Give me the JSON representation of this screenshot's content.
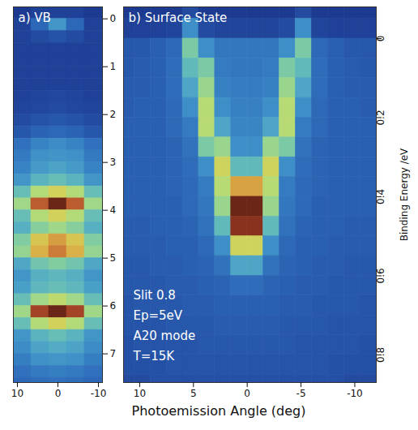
{
  "chart_data": {
    "type": "heatmap",
    "xlabel": "Photoemission Angle (deg)",
    "panels": [
      {
        "title": "a) VB",
        "xlim": [
          11,
          -11
        ],
        "ylim": [
          7.6,
          -0.25
        ],
        "xticks": [
          10,
          0,
          -10
        ],
        "yticks": [
          0,
          1,
          2,
          3,
          4,
          5,
          6,
          7
        ],
        "x_bins": [
          11,
          6.6,
          2.2,
          -2.2,
          -6.6,
          -11
        ],
        "y_bins": [
          -0.25,
          0,
          0.25,
          0.5,
          0.75,
          1,
          1.25,
          1.5,
          1.75,
          2,
          2.25,
          2.5,
          2.75,
          3,
          3.25,
          3.5,
          3.75,
          4,
          4.25,
          4.5,
          4.75,
          5,
          5.25,
          5.5,
          5.75,
          6,
          6.25,
          6.5,
          6.75,
          7,
          7.25,
          7.5,
          7.75
        ],
        "values": [
          [
            0.8,
            1,
            1,
            1,
            0.8
          ],
          [
            1,
            2,
            3,
            2,
            1
          ],
          [
            1,
            1.3,
            1.5,
            1.3,
            1
          ],
          [
            1,
            1,
            1,
            1,
            1
          ],
          [
            1,
            1,
            1,
            1,
            1
          ],
          [
            1,
            1,
            1,
            1,
            1
          ],
          [
            1,
            1,
            1,
            1,
            1
          ],
          [
            1,
            1.1,
            1.2,
            1.1,
            1
          ],
          [
            1.1,
            1.2,
            1.3,
            1.2,
            1.1
          ],
          [
            1.3,
            1.5,
            1.6,
            1.5,
            1.3
          ],
          [
            1.6,
            1.9,
            2,
            1.9,
            1.6
          ],
          [
            2.2,
            2.6,
            2.8,
            2.6,
            2.2
          ],
          [
            2.4,
            2.9,
            3,
            2.9,
            2.4
          ],
          [
            2.6,
            3.1,
            3.3,
            3.1,
            2.6
          ],
          [
            3,
            3.7,
            4,
            3.7,
            3
          ],
          [
            4,
            5.3,
            6,
            5.3,
            4
          ],
          [
            5,
            8,
            9.5,
            8,
            5
          ],
          [
            4,
            5.3,
            6,
            5.3,
            4
          ],
          [
            3.6,
            4.6,
            5,
            4.6,
            3.6
          ],
          [
            4.5,
            6.3,
            7,
            6.3,
            4.5
          ],
          [
            4.8,
            6.7,
            7.5,
            6.7,
            4.8
          ],
          [
            3.4,
            4.2,
            4.5,
            4.2,
            3.4
          ],
          [
            3,
            3.6,
            3.8,
            3.6,
            3
          ],
          [
            3.2,
            3.8,
            4,
            3.8,
            3.2
          ],
          [
            4,
            5,
            5.5,
            5,
            4
          ],
          [
            5,
            8.5,
            9.5,
            8.5,
            5
          ],
          [
            4,
            5.3,
            6,
            5.3,
            4
          ],
          [
            3,
            3.7,
            4,
            3.7,
            3
          ],
          [
            2.8,
            3.3,
            3.5,
            3.3,
            2.8
          ],
          [
            2.5,
            2.9,
            3,
            2.9,
            2.5
          ],
          [
            2.2,
            2.4,
            2.5,
            2.4,
            2.2
          ],
          [
            2,
            2.1,
            2.2,
            2.1,
            2
          ]
        ]
      },
      {
        "title": "b) Surface State",
        "ylabel": "Binding Energy /eV",
        "annotations": [
          "Slit 0.8",
          "Ep=5eV",
          "A20 mode",
          "T=15K"
        ],
        "xlim": [
          11.5,
          -12
        ],
        "ylim": [
          0.87,
          -0.08
        ],
        "xticks": [
          10,
          5,
          0,
          -5,
          -10
        ],
        "yticks": [
          0,
          0.2,
          0.4,
          0.6,
          0.8
        ],
        "x_bins": [
          12,
          10.5,
          9,
          7.5,
          6,
          4.5,
          3,
          1.5,
          0,
          -1.5,
          -3,
          -4.5,
          -6,
          -7.5,
          -9,
          -10.5,
          -12
        ],
        "y_bins": [
          -0.1,
          -0.05,
          0,
          0.05,
          0.1,
          0.15,
          0.2,
          0.25,
          0.3,
          0.35,
          0.4,
          0.45,
          0.5,
          0.55,
          0.6,
          0.65,
          0.7,
          0.75,
          0.8,
          0.85,
          0.9
        ],
        "values": [
          [
            1,
            1,
            1,
            1,
            1.5,
            1,
            1,
            1,
            1,
            1,
            1,
            1.5,
            1,
            1,
            1,
            1
          ],
          [
            1.2,
            1.2,
            1.2,
            1.3,
            3,
            1.5,
            1.3,
            1.3,
            1.3,
            1.3,
            1.5,
            3,
            1.3,
            1.2,
            1.2,
            1.2
          ],
          [
            1.8,
            1.8,
            2,
            2.2,
            4.5,
            3,
            2.5,
            2.5,
            2.5,
            2.5,
            3,
            4.5,
            2.2,
            2,
            1.8,
            1.8
          ],
          [
            1.8,
            1.9,
            2,
            2.3,
            4,
            4.5,
            2.6,
            2.5,
            2.5,
            2.6,
            4.5,
            4,
            2.3,
            2,
            1.9,
            1.8
          ],
          [
            1.9,
            1.9,
            2,
            2.3,
            3.5,
            5,
            2.7,
            2.6,
            2.6,
            2.7,
            5,
            3.5,
            2.3,
            2,
            1.9,
            1.9
          ],
          [
            1.9,
            2,
            2,
            2.2,
            3,
            5.5,
            3,
            2.7,
            2.7,
            3,
            5.5,
            3,
            2.2,
            2,
            2,
            1.9
          ],
          [
            2,
            2,
            2,
            2.2,
            2.6,
            5.5,
            3.5,
            2.8,
            2.8,
            3.5,
            5.5,
            2.6,
            2.2,
            2,
            2,
            2
          ],
          [
            2,
            2,
            2,
            2.1,
            2.4,
            4.5,
            5,
            3,
            3,
            5,
            4.5,
            2.4,
            2.1,
            2,
            2,
            2
          ],
          [
            2,
            2,
            2,
            2.1,
            2.3,
            3,
            6,
            4,
            4,
            6,
            3,
            2.3,
            2.1,
            2,
            2,
            2
          ],
          [
            2,
            2,
            2,
            2.1,
            2.2,
            2.6,
            5.5,
            7,
            7,
            5.5,
            2.6,
            2.2,
            2.1,
            2,
            2,
            2
          ],
          [
            2,
            2,
            2,
            2,
            2.2,
            2.5,
            5,
            9.5,
            9.5,
            5,
            2.5,
            2.2,
            2,
            2,
            2,
            2
          ],
          [
            1.9,
            1.9,
            2,
            2,
            2.1,
            2.4,
            4,
            9,
            9,
            4,
            2.4,
            2.1,
            2,
            2,
            1.9,
            1.9
          ],
          [
            1.9,
            1.9,
            1.9,
            2,
            2,
            2.2,
            3,
            6,
            6,
            3,
            2.2,
            2,
            2,
            1.9,
            1.9,
            1.9
          ],
          [
            1.8,
            1.8,
            1.9,
            1.9,
            2,
            2.1,
            2.4,
            3.5,
            3.5,
            2.4,
            2.1,
            2,
            1.9,
            1.9,
            1.8,
            1.8
          ],
          [
            1.8,
            1.8,
            1.8,
            1.9,
            1.9,
            2,
            2.1,
            2.3,
            2.3,
            2.1,
            2,
            1.9,
            1.9,
            1.8,
            1.8,
            1.8
          ],
          [
            1.7,
            1.8,
            1.8,
            1.8,
            1.9,
            1.9,
            2,
            2,
            2,
            2,
            1.9,
            1.9,
            1.8,
            1.8,
            1.8,
            1.7
          ],
          [
            1.7,
            1.7,
            1.7,
            1.8,
            1.8,
            1.8,
            1.9,
            1.9,
            1.9,
            1.9,
            1.8,
            1.8,
            1.8,
            1.7,
            1.7,
            1.7
          ],
          [
            1.6,
            1.7,
            1.7,
            1.7,
            1.7,
            1.8,
            1.8,
            1.8,
            1.8,
            1.8,
            1.8,
            1.7,
            1.7,
            1.7,
            1.7,
            1.6
          ],
          [
            1.6,
            1.6,
            1.6,
            1.7,
            1.7,
            1.7,
            1.7,
            1.7,
            1.7,
            1.7,
            1.7,
            1.7,
            1.7,
            1.6,
            1.6,
            1.6
          ],
          [
            1.5,
            1.5,
            1.6,
            1.6,
            1.6,
            1.6,
            1.6,
            1.6,
            1.6,
            1.6,
            1.6,
            1.6,
            1.6,
            1.6,
            1.5,
            1.5
          ]
        ]
      }
    ]
  }
}
